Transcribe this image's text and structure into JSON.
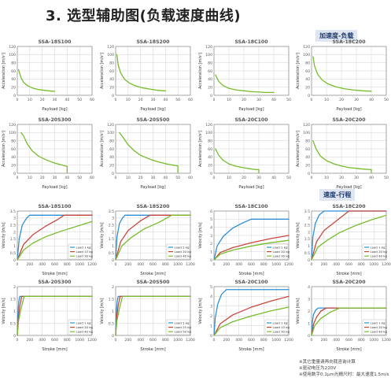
{
  "page": {
    "title": "3.  选型辅助图(负载速度曲线)",
    "sections": {
      "accel_tag": "加速度-负载",
      "speed_tag": "速度-行程"
    }
  },
  "notes": [
    "※其它重量请再向我咨询计算",
    "※驱动电压为220V",
    "※使用数字0.1μm光栅尺时：最大速度1.5m/s"
  ],
  "colors": {
    "green": "#76bc2b",
    "red": "#c8453d",
    "blue": "#2f8fd4",
    "axis": "#777777",
    "grid": "#d3d3d3"
  },
  "chart_data": [
    {
      "id": "acc-18s100",
      "type": "line",
      "title": "SSA-18S100",
      "xlabel": "Payload [kg]",
      "ylabel": "Acceleration [m/s²]",
      "xlim": [
        0,
        60
      ],
      "ylim": [
        0,
        120
      ],
      "xticks": [
        0,
        10,
        20,
        30,
        40,
        50,
        60
      ],
      "yticks": [
        0,
        20,
        40,
        60,
        80,
        100,
        120
      ],
      "series": [
        {
          "color": "green",
          "x": [
            1,
            3,
            5,
            8,
            12,
            17,
            22,
            28,
            30
          ],
          "y": [
            63,
            43,
            32,
            24,
            18,
            14,
            12,
            10,
            10
          ]
        }
      ]
    },
    {
      "id": "acc-18s200",
      "type": "line",
      "title": "SSA-18S200",
      "xlabel": "Payload [kg]",
      "ylabel": "Acceleration [m/s²]",
      "xlim": [
        0,
        60
      ],
      "ylim": [
        0,
        120
      ],
      "xticks": [
        0,
        10,
        20,
        30,
        40,
        50,
        60
      ],
      "yticks": [
        0,
        20,
        40,
        60,
        80,
        100,
        120
      ],
      "series": [
        {
          "color": "green",
          "x": [
            1,
            2,
            4,
            7,
            11,
            16,
            22,
            28,
            34,
            40
          ],
          "y": [
            100,
            75,
            55,
            40,
            30,
            23,
            18,
            15,
            12,
            11
          ]
        }
      ]
    },
    {
      "id": "acc-18c100",
      "type": "line",
      "title": "SSA-18C100",
      "xlabel": "Payload [kg]",
      "ylabel": "Acceleration [m/s²]",
      "xlim": [
        0,
        50
      ],
      "ylim": [
        0,
        120
      ],
      "xticks": [
        0,
        10,
        20,
        30,
        40,
        50
      ],
      "yticks": [
        0,
        20,
        40,
        60,
        80,
        100,
        120
      ],
      "series": [
        {
          "color": "green",
          "x": [
            1,
            3,
            6,
            10,
            15,
            20,
            25,
            30,
            35,
            40
          ],
          "y": [
            50,
            35,
            24,
            17,
            13,
            11,
            9,
            8,
            7,
            7
          ]
        }
      ]
    },
    {
      "id": "acc-18c200",
      "type": "line",
      "title": "SSA-18C200",
      "xlabel": "Payload [kg]",
      "ylabel": "Acceleration [m/s²]",
      "xlim": [
        0,
        50
      ],
      "ylim": [
        0,
        120
      ],
      "xticks": [
        0,
        10,
        20,
        30,
        40,
        50
      ],
      "yticks": [
        0,
        20,
        40,
        60,
        80,
        100,
        120
      ],
      "series": [
        {
          "color": "green",
          "x": [
            1,
            2,
            4,
            7,
            11,
            16,
            22,
            28,
            34,
            40
          ],
          "y": [
            95,
            72,
            52,
            38,
            28,
            21,
            16,
            13,
            11,
            10
          ]
        }
      ]
    },
    {
      "id": "acc-20s300",
      "type": "line",
      "title": "SSA-20S300",
      "xlabel": "Payload [kg]",
      "ylabel": "Acceleration [m/s²]",
      "xlim": [
        0,
        60
      ],
      "ylim": [
        0,
        120
      ],
      "xticks": [
        0,
        10,
        20,
        30,
        40,
        50,
        60
      ],
      "yticks": [
        0,
        20,
        40,
        60,
        80,
        100,
        120
      ],
      "series": [
        {
          "color": "green",
          "x": [
            3,
            5,
            8,
            12,
            17,
            23,
            30,
            36,
            40,
            40
          ],
          "y": [
            100,
            92,
            72,
            55,
            42,
            33,
            25,
            20,
            17,
            2
          ]
        }
      ]
    },
    {
      "id": "acc-20s500",
      "type": "line",
      "title": "SSA-20S500",
      "xlabel": "Payload [kg]",
      "ylabel": "Acceleration [m/s²]",
      "xlim": [
        0,
        60
      ],
      "ylim": [
        0,
        120
      ],
      "xticks": [
        0,
        10,
        20,
        30,
        40,
        50,
        60
      ],
      "yticks": [
        0,
        20,
        40,
        60,
        80,
        100,
        120
      ],
      "series": [
        {
          "color": "green",
          "x": [
            3,
            6,
            10,
            15,
            20,
            27,
            34,
            42,
            50,
            50
          ],
          "y": [
            100,
            88,
            70,
            55,
            44,
            35,
            28,
            22,
            18,
            2
          ]
        }
      ]
    },
    {
      "id": "acc-20c100",
      "type": "line",
      "title": "SSA-20C100",
      "xlabel": "Payload [kg]",
      "ylabel": "Acceleration [m/s²]",
      "xlim": [
        0,
        50
      ],
      "ylim": [
        0,
        120
      ],
      "xticks": [
        0,
        10,
        20,
        30,
        40,
        50
      ],
      "yticks": [
        0,
        20,
        40,
        60,
        80,
        100,
        120
      ],
      "series": [
        {
          "color": "green",
          "x": [
            1,
            3,
            6,
            10,
            14,
            19,
            24,
            28,
            30,
            30
          ],
          "y": [
            60,
            45,
            32,
            23,
            18,
            14,
            11,
            9,
            9,
            2
          ]
        }
      ]
    },
    {
      "id": "acc-20c200",
      "type": "line",
      "title": "SSA-20C200",
      "xlabel": "Payload [kg]",
      "ylabel": "Acceleration [m/s²]",
      "xlim": [
        0,
        50
      ],
      "ylim": [
        0,
        120
      ],
      "xticks": [
        0,
        10,
        20,
        30,
        40,
        50
      ],
      "yticks": [
        0,
        20,
        40,
        60,
        80,
        100,
        120
      ],
      "series": [
        {
          "color": "green",
          "x": [
            1,
            3,
            6,
            10,
            15,
            20,
            25,
            30,
            35,
            40,
            40
          ],
          "y": [
            80,
            60,
            42,
            31,
            23,
            18,
            14,
            12,
            10,
            9,
            2
          ]
        }
      ]
    },
    {
      "id": "spd-18s100",
      "type": "line",
      "title": "SSA-18S100",
      "xlabel": "Stroke [mm]",
      "ylabel": "Velocity [m/s]",
      "xlim": [
        0,
        1200
      ],
      "ylim": [
        0,
        3.5
      ],
      "xticks": [
        0,
        200,
        400,
        600,
        800,
        1000,
        1200
      ],
      "yticks": [
        0,
        0.5,
        1,
        1.5,
        2,
        2.5,
        3,
        3.5
      ],
      "legend": [
        "Load 1 kg",
        "Load 15 kg",
        "Load 30 kg"
      ],
      "series": [
        {
          "color": "blue",
          "x": [
            0,
            30,
            80,
            150,
            200,
            1200
          ],
          "y": [
            0,
            1.5,
            2.5,
            3.0,
            3.2,
            3.2
          ]
        },
        {
          "color": "red",
          "x": [
            0,
            100,
            250,
            450,
            650,
            750,
            1200
          ],
          "y": [
            0,
            1.1,
            1.8,
            2.4,
            2.9,
            3.2,
            3.2
          ]
        },
        {
          "color": "green",
          "x": [
            0,
            100,
            250,
            450,
            700,
            950,
            1200
          ],
          "y": [
            0,
            0.7,
            1.2,
            1.65,
            2.05,
            2.4,
            2.75
          ]
        }
      ]
    },
    {
      "id": "spd-18s200",
      "type": "line",
      "title": "SSA-18S200",
      "xlabel": "Stroke [mm]",
      "ylabel": "Velocity [m/s]",
      "xlim": [
        0,
        1200
      ],
      "ylim": [
        0,
        3.5
      ],
      "xticks": [
        0,
        200,
        400,
        600,
        800,
        1000,
        1200
      ],
      "yticks": [
        0,
        0.5,
        1,
        1.5,
        2,
        2.5,
        3,
        3.5
      ],
      "legend": [
        "Load 1 kg",
        "Load 20 kg",
        "Load 40 kg"
      ],
      "series": [
        {
          "color": "blue",
          "x": [
            0,
            20,
            60,
            110,
            150,
            1200
          ],
          "y": [
            0,
            1.6,
            2.6,
            3.0,
            3.2,
            3.2
          ]
        },
        {
          "color": "red",
          "x": [
            0,
            80,
            200,
            400,
            550,
            1200
          ],
          "y": [
            0,
            1.3,
            2.1,
            2.8,
            3.2,
            3.2
          ]
        },
        {
          "color": "green",
          "x": [
            0,
            100,
            250,
            450,
            700,
            900,
            1200
          ],
          "y": [
            0,
            1.0,
            1.6,
            2.2,
            2.7,
            3.2,
            3.2
          ]
        }
      ]
    },
    {
      "id": "spd-18c100",
      "type": "line",
      "title": "SSA-18C100",
      "xlabel": "Stroke [mm]",
      "ylabel": "Velocity [m/s]",
      "xlim": [
        0,
        1200
      ],
      "ylim": [
        0,
        6
      ],
      "xticks": [
        0,
        200,
        400,
        600,
        800,
        1000,
        1200
      ],
      "yticks": [
        0,
        1,
        2,
        3,
        4,
        5,
        6
      ],
      "legend": [
        "Load 1 kg",
        "Load 20 kg",
        "Load 30 kg"
      ],
      "series": [
        {
          "color": "blue",
          "x": [
            0,
            50,
            150,
            300,
            450,
            600,
            1200
          ],
          "y": [
            0,
            1.7,
            2.9,
            3.9,
            4.5,
            5.0,
            5.0
          ]
        },
        {
          "color": "red",
          "x": [
            0,
            100,
            300,
            600,
            900,
            1200
          ],
          "y": [
            0,
            0.9,
            1.5,
            2.1,
            2.6,
            3.0
          ]
        },
        {
          "color": "green",
          "x": [
            0,
            100,
            300,
            600,
            900,
            1200
          ],
          "y": [
            0,
            0.7,
            1.2,
            1.7,
            2.1,
            2.4
          ]
        }
      ]
    },
    {
      "id": "spd-18c200",
      "type": "line",
      "title": "SSA-18C200",
      "xlabel": "Stroke [mm]",
      "ylabel": "Velocity [m/s]",
      "xlim": [
        0,
        1200
      ],
      "ylim": [
        0,
        3.5
      ],
      "xticks": [
        0,
        200,
        400,
        600,
        800,
        1000,
        1200
      ],
      "yticks": [
        0,
        0.5,
        1,
        1.5,
        2,
        2.5,
        3,
        3.5
      ],
      "legend": [
        "Load 1 kg",
        "Load 20 kg",
        "Load 40 kg"
      ],
      "series": [
        {
          "color": "blue",
          "x": [
            0,
            20,
            60,
            120,
            200,
            1200
          ],
          "y": [
            0,
            1.6,
            2.6,
            3.2,
            3.5,
            3.5
          ]
        },
        {
          "color": "red",
          "x": [
            0,
            80,
            200,
            400,
            600,
            1200
          ],
          "y": [
            0,
            1.3,
            2.1,
            2.8,
            3.5,
            3.5
          ]
        },
        {
          "color": "green",
          "x": [
            0,
            100,
            250,
            450,
            700,
            950,
            1200
          ],
          "y": [
            0,
            0.9,
            1.4,
            1.95,
            2.45,
            2.85,
            3.2
          ]
        }
      ]
    },
    {
      "id": "spd-20s300",
      "type": "line",
      "title": "SSA-20S300",
      "xlabel": "Stroke [mm]",
      "ylabel": "Velocity [m/s]",
      "xlim": [
        0,
        1200
      ],
      "ylim": [
        0,
        2
      ],
      "xticks": [
        0,
        200,
        400,
        600,
        800,
        1000,
        1200
      ],
      "yticks": [
        0,
        0.5,
        1,
        1.5,
        2
      ],
      "legend": [
        "Load 1 kg",
        "Load 20 kg",
        "Load 40 kg"
      ],
      "series": [
        {
          "color": "blue",
          "x": [
            0,
            10,
            25,
            40,
            1200
          ],
          "y": [
            0,
            0.9,
            1.4,
            1.6,
            1.6
          ]
        },
        {
          "color": "red",
          "x": [
            0,
            15,
            40,
            70,
            1200
          ],
          "y": [
            0,
            0.7,
            1.2,
            1.6,
            1.6
          ]
        },
        {
          "color": "green",
          "x": [
            0,
            20,
            60,
            110,
            1200
          ],
          "y": [
            0,
            0.6,
            1.1,
            1.6,
            1.6
          ]
        }
      ]
    },
    {
      "id": "spd-20s500",
      "type": "line",
      "title": "SSA-20S500",
      "xlabel": "Stroke [mm]",
      "ylabel": "Velocity [m/s]",
      "xlim": [
        0,
        1200
      ],
      "ylim": [
        0,
        2
      ],
      "xticks": [
        0,
        200,
        400,
        600,
        800,
        1000,
        1200
      ],
      "yticks": [
        0,
        0.5,
        1,
        1.5,
        2
      ],
      "legend": [
        "Load 1 kg",
        "Load 25 kg",
        "Load 50 kg"
      ],
      "series": [
        {
          "color": "blue",
          "x": [
            0,
            10,
            25,
            40,
            1200
          ],
          "y": [
            0,
            0.9,
            1.4,
            1.6,
            1.6
          ]
        },
        {
          "color": "red",
          "x": [
            0,
            15,
            40,
            70,
            1200
          ],
          "y": [
            0,
            0.7,
            1.2,
            1.6,
            1.6
          ]
        },
        {
          "color": "green",
          "x": [
            0,
            20,
            60,
            110,
            1200
          ],
          "y": [
            0,
            0.6,
            1.1,
            1.6,
            1.6
          ]
        }
      ]
    },
    {
      "id": "spd-20c100",
      "type": "line",
      "title": "SSA-20C100",
      "xlabel": "Stroke [mm]",
      "ylabel": "Velocity [m/s]",
      "xlim": [
        0,
        1200
      ],
      "ylim": [
        0,
        5
      ],
      "xticks": [
        0,
        200,
        400,
        600,
        800,
        1000,
        1200
      ],
      "yticks": [
        0,
        1,
        2,
        3,
        4,
        5
      ],
      "legend": [
        "Load 1 kg",
        "Load 15 kg",
        "Load 30 kg"
      ],
      "series": [
        {
          "color": "blue",
          "x": [
            0,
            20,
            60,
            120,
            200,
            1200
          ],
          "y": [
            0,
            1.8,
            3.2,
            4.2,
            4.7,
            4.7
          ]
        },
        {
          "color": "red",
          "x": [
            0,
            100,
            300,
            600,
            900,
            1200
          ],
          "y": [
            0,
            1.2,
            2.1,
            2.9,
            3.5,
            4.0
          ]
        },
        {
          "color": "green",
          "x": [
            0,
            100,
            300,
            600,
            900,
            1200
          ],
          "y": [
            0,
            0.8,
            1.4,
            2.0,
            2.5,
            2.9
          ]
        }
      ]
    },
    {
      "id": "spd-20c200",
      "type": "line",
      "title": "SSA-20C200",
      "xlabel": "Stroke [mm]",
      "ylabel": "Velocity [m/s]",
      "xlim": [
        0,
        1200
      ],
      "ylim": [
        0,
        4
      ],
      "xticks": [
        0,
        200,
        400,
        600,
        800,
        1000,
        1200
      ],
      "yticks": [
        0,
        1,
        2,
        3,
        4
      ],
      "legend": [
        "Load 1 kg",
        "Load 20 kg",
        "Load 40 kg"
      ],
      "series": [
        {
          "color": "blue",
          "x": [
            0,
            10,
            30,
            70,
            110,
            1200
          ],
          "y": [
            0,
            1.0,
            1.7,
            2.1,
            2.25,
            2.25
          ]
        },
        {
          "color": "red",
          "x": [
            0,
            30,
            80,
            150,
            240,
            1200
          ],
          "y": [
            0,
            0.9,
            1.5,
            2.0,
            2.25,
            2.25
          ]
        },
        {
          "color": "green",
          "x": [
            0,
            50,
            150,
            300,
            450,
            1200
          ],
          "y": [
            0,
            0.8,
            1.4,
            1.9,
            2.25,
            2.25
          ]
        }
      ]
    }
  ]
}
